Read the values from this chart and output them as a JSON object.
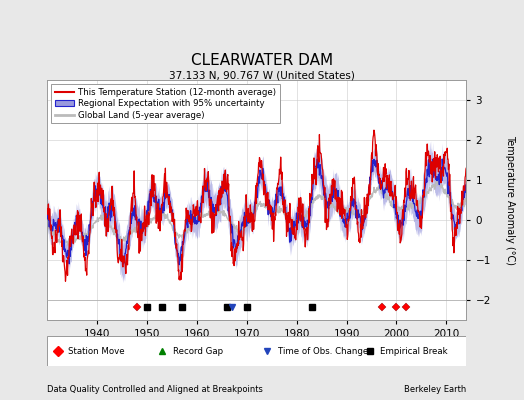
{
  "title": "CLEARWATER DAM",
  "subtitle": "37.133 N, 90.767 W (United States)",
  "ylabel": "Temperature Anomaly (°C)",
  "xlabel_bottom": "Data Quality Controlled and Aligned at Breakpoints",
  "xlabel_bottom_right": "Berkeley Earth",
  "year_start": 1930,
  "year_end": 2014,
  "ylim": [
    -2.5,
    3.5
  ],
  "yticks": [
    -2,
    -1,
    0,
    1,
    2,
    3
  ],
  "xticks": [
    1940,
    1950,
    1960,
    1970,
    1980,
    1990,
    2000,
    2010
  ],
  "bg_color": "#e8e8e8",
  "plot_bg_color": "#ffffff",
  "station_color": "#dd0000",
  "regional_color": "#2222cc",
  "regional_fill": "#9999dd",
  "global_color": "#bbbbbb",
  "station_moves": [
    1948,
    1997,
    2000,
    2002
  ],
  "empirical_breaks": [
    1950,
    1953,
    1957,
    1966,
    1970,
    1983
  ],
  "obs_changes": [
    1967
  ],
  "record_gaps": []
}
